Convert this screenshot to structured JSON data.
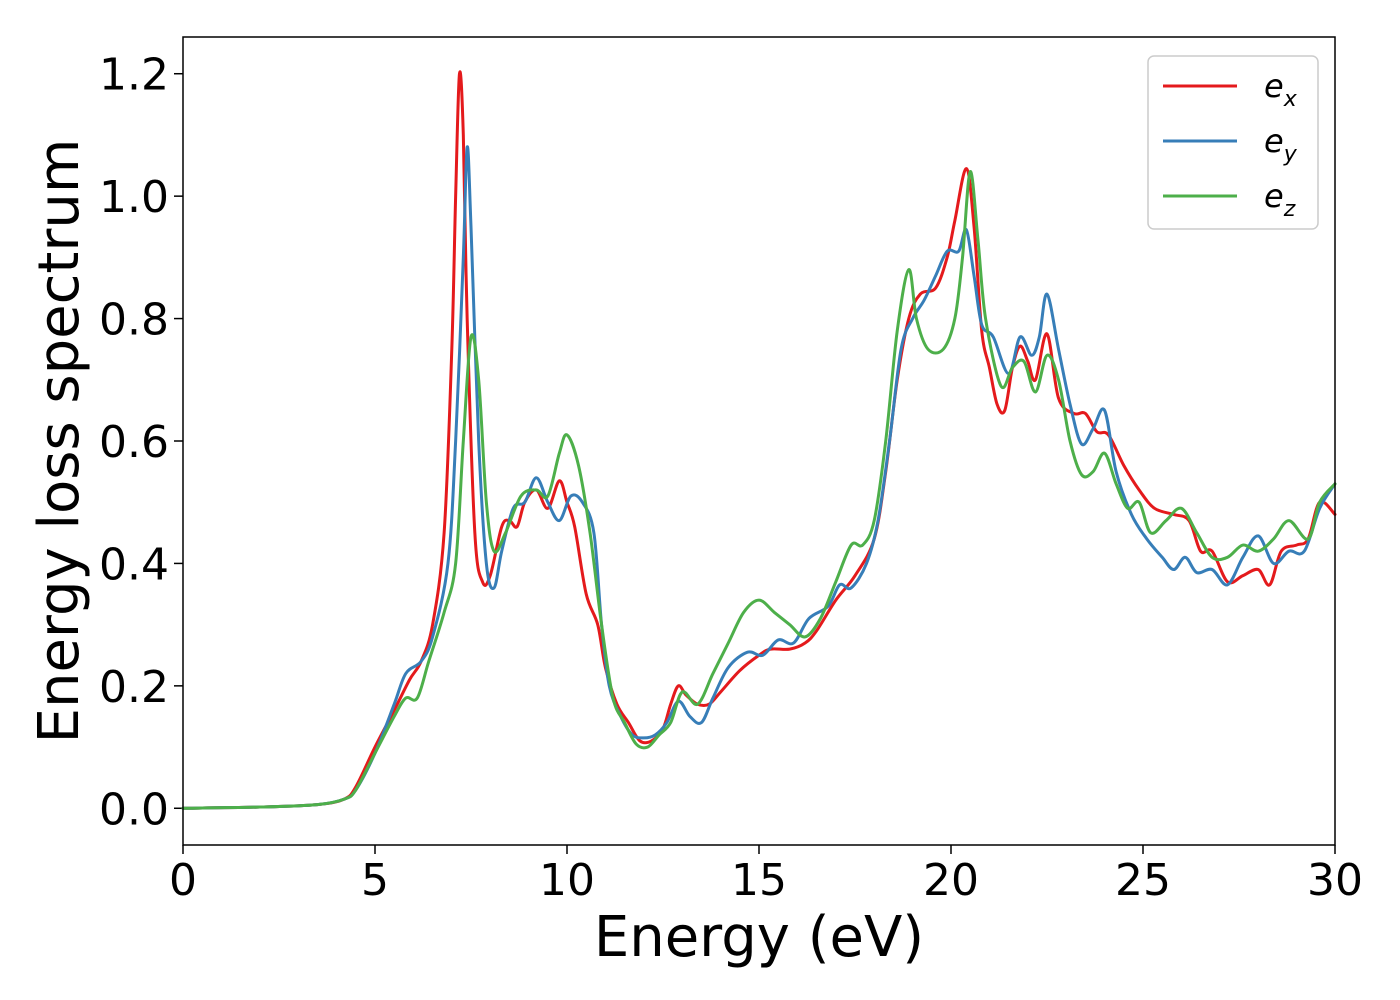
{
  "chart_data": {
    "type": "line",
    "title": "",
    "xlabel": "Energy (eV)",
    "ylabel": "Energy loss spectrum",
    "xlim": [
      0,
      30
    ],
    "ylim": [
      -0.06,
      1.26
    ],
    "xticks": [
      0,
      5,
      10,
      15,
      20,
      25,
      30
    ],
    "yticks": [
      0.0,
      0.2,
      0.4,
      0.6,
      0.8,
      1.0,
      1.2
    ],
    "ytick_labels": [
      "0.0",
      "0.2",
      "0.4",
      "0.6",
      "0.8",
      "1.0",
      "1.2"
    ],
    "grid": false,
    "legend_position": "top-right",
    "series": [
      {
        "name": "e",
        "subscript": "x",
        "color": "#e41a1c",
        "points": [
          [
            0,
            0.0
          ],
          [
            2,
            0.002
          ],
          [
            3.5,
            0.006
          ],
          [
            4.2,
            0.015
          ],
          [
            4.5,
            0.035
          ],
          [
            5.0,
            0.1
          ],
          [
            5.5,
            0.16
          ],
          [
            5.9,
            0.21
          ],
          [
            6.2,
            0.24
          ],
          [
            6.5,
            0.3
          ],
          [
            6.8,
            0.45
          ],
          [
            7.0,
            0.75
          ],
          [
            7.1,
            1.0
          ],
          [
            7.2,
            1.2
          ],
          [
            7.3,
            1.1
          ],
          [
            7.4,
            0.8
          ],
          [
            7.6,
            0.45
          ],
          [
            7.8,
            0.37
          ],
          [
            8.0,
            0.38
          ],
          [
            8.3,
            0.46
          ],
          [
            8.5,
            0.47
          ],
          [
            8.7,
            0.46
          ],
          [
            8.9,
            0.5
          ],
          [
            9.2,
            0.52
          ],
          [
            9.5,
            0.49
          ],
          [
            9.8,
            0.535
          ],
          [
            10.0,
            0.5
          ],
          [
            10.2,
            0.46
          ],
          [
            10.5,
            0.35
          ],
          [
            10.8,
            0.3
          ],
          [
            11.0,
            0.23
          ],
          [
            11.3,
            0.17
          ],
          [
            11.6,
            0.14
          ],
          [
            11.9,
            0.11
          ],
          [
            12.2,
            0.11
          ],
          [
            12.5,
            0.13
          ],
          [
            12.7,
            0.17
          ],
          [
            12.9,
            0.2
          ],
          [
            13.1,
            0.185
          ],
          [
            13.4,
            0.17
          ],
          [
            13.7,
            0.17
          ],
          [
            14.0,
            0.19
          ],
          [
            14.5,
            0.225
          ],
          [
            15.0,
            0.25
          ],
          [
            15.3,
            0.26
          ],
          [
            15.8,
            0.26
          ],
          [
            16.2,
            0.27
          ],
          [
            16.5,
            0.29
          ],
          [
            17.0,
            0.34
          ],
          [
            17.5,
            0.38
          ],
          [
            18.0,
            0.44
          ],
          [
            18.3,
            0.55
          ],
          [
            18.6,
            0.7
          ],
          [
            18.9,
            0.8
          ],
          [
            19.2,
            0.84
          ],
          [
            19.6,
            0.85
          ],
          [
            19.9,
            0.9
          ],
          [
            20.1,
            0.96
          ],
          [
            20.4,
            1.045
          ],
          [
            20.6,
            0.95
          ],
          [
            20.8,
            0.78
          ],
          [
            21.0,
            0.72
          ],
          [
            21.2,
            0.66
          ],
          [
            21.4,
            0.65
          ],
          [
            21.6,
            0.72
          ],
          [
            21.8,
            0.755
          ],
          [
            22.0,
            0.73
          ],
          [
            22.2,
            0.7
          ],
          [
            22.5,
            0.775
          ],
          [
            22.8,
            0.67
          ],
          [
            23.2,
            0.645
          ],
          [
            23.5,
            0.645
          ],
          [
            23.8,
            0.615
          ],
          [
            24.1,
            0.61
          ],
          [
            24.5,
            0.56
          ],
          [
            24.9,
            0.52
          ],
          [
            25.3,
            0.49
          ],
          [
            25.8,
            0.48
          ],
          [
            26.2,
            0.47
          ],
          [
            26.5,
            0.42
          ],
          [
            26.8,
            0.42
          ],
          [
            27.2,
            0.37
          ],
          [
            27.6,
            0.38
          ],
          [
            28.0,
            0.39
          ],
          [
            28.3,
            0.365
          ],
          [
            28.6,
            0.42
          ],
          [
            29.0,
            0.43
          ],
          [
            29.3,
            0.44
          ],
          [
            29.6,
            0.5
          ],
          [
            30,
            0.48
          ]
        ]
      },
      {
        "name": "e",
        "subscript": "y",
        "color": "#377eb8",
        "points": [
          [
            0,
            0.0
          ],
          [
            2,
            0.002
          ],
          [
            3.5,
            0.006
          ],
          [
            4.2,
            0.015
          ],
          [
            4.5,
            0.03
          ],
          [
            5.0,
            0.09
          ],
          [
            5.5,
            0.17
          ],
          [
            5.8,
            0.22
          ],
          [
            6.2,
            0.24
          ],
          [
            6.5,
            0.28
          ],
          [
            6.9,
            0.4
          ],
          [
            7.1,
            0.6
          ],
          [
            7.3,
            0.9
          ],
          [
            7.4,
            1.08
          ],
          [
            7.5,
            0.95
          ],
          [
            7.7,
            0.6
          ],
          [
            7.9,
            0.4
          ],
          [
            8.1,
            0.36
          ],
          [
            8.3,
            0.42
          ],
          [
            8.6,
            0.49
          ],
          [
            8.9,
            0.5
          ],
          [
            9.2,
            0.54
          ],
          [
            9.5,
            0.5
          ],
          [
            9.8,
            0.47
          ],
          [
            10.1,
            0.51
          ],
          [
            10.4,
            0.5
          ],
          [
            10.7,
            0.45
          ],
          [
            10.9,
            0.3
          ],
          [
            11.1,
            0.2
          ],
          [
            11.4,
            0.15
          ],
          [
            11.7,
            0.12
          ],
          [
            12.0,
            0.115
          ],
          [
            12.3,
            0.12
          ],
          [
            12.6,
            0.14
          ],
          [
            12.9,
            0.175
          ],
          [
            13.2,
            0.15
          ],
          [
            13.5,
            0.14
          ],
          [
            13.8,
            0.18
          ],
          [
            14.2,
            0.23
          ],
          [
            14.7,
            0.255
          ],
          [
            15.1,
            0.25
          ],
          [
            15.5,
            0.275
          ],
          [
            15.9,
            0.27
          ],
          [
            16.3,
            0.31
          ],
          [
            16.8,
            0.33
          ],
          [
            17.1,
            0.365
          ],
          [
            17.4,
            0.36
          ],
          [
            17.8,
            0.4
          ],
          [
            18.1,
            0.47
          ],
          [
            18.4,
            0.6
          ],
          [
            18.7,
            0.75
          ],
          [
            19.0,
            0.8
          ],
          [
            19.3,
            0.83
          ],
          [
            19.6,
            0.87
          ],
          [
            19.9,
            0.91
          ],
          [
            20.2,
            0.91
          ],
          [
            20.4,
            0.945
          ],
          [
            20.6,
            0.87
          ],
          [
            20.8,
            0.79
          ],
          [
            21.1,
            0.77
          ],
          [
            21.5,
            0.71
          ],
          [
            21.8,
            0.77
          ],
          [
            22.1,
            0.74
          ],
          [
            22.3,
            0.77
          ],
          [
            22.5,
            0.84
          ],
          [
            22.8,
            0.75
          ],
          [
            23.1,
            0.66
          ],
          [
            23.4,
            0.595
          ],
          [
            23.7,
            0.62
          ],
          [
            24.0,
            0.65
          ],
          [
            24.3,
            0.55
          ],
          [
            24.7,
            0.48
          ],
          [
            25.1,
            0.44
          ],
          [
            25.5,
            0.41
          ],
          [
            25.8,
            0.39
          ],
          [
            26.1,
            0.41
          ],
          [
            26.4,
            0.385
          ],
          [
            26.8,
            0.39
          ],
          [
            27.2,
            0.365
          ],
          [
            27.6,
            0.41
          ],
          [
            28.0,
            0.445
          ],
          [
            28.4,
            0.4
          ],
          [
            28.8,
            0.42
          ],
          [
            29.2,
            0.42
          ],
          [
            29.6,
            0.49
          ],
          [
            30,
            0.53
          ]
        ]
      },
      {
        "name": "e",
        "subscript": "z",
        "color": "#4daf4a",
        "points": [
          [
            0,
            0.0
          ],
          [
            2,
            0.002
          ],
          [
            3.5,
            0.006
          ],
          [
            4.2,
            0.015
          ],
          [
            4.5,
            0.03
          ],
          [
            5.0,
            0.09
          ],
          [
            5.5,
            0.15
          ],
          [
            5.8,
            0.18
          ],
          [
            6.1,
            0.18
          ],
          [
            6.4,
            0.24
          ],
          [
            6.8,
            0.32
          ],
          [
            7.1,
            0.4
          ],
          [
            7.3,
            0.6
          ],
          [
            7.5,
            0.77
          ],
          [
            7.7,
            0.7
          ],
          [
            7.9,
            0.5
          ],
          [
            8.1,
            0.42
          ],
          [
            8.4,
            0.45
          ],
          [
            8.8,
            0.51
          ],
          [
            9.2,
            0.52
          ],
          [
            9.5,
            0.51
          ],
          [
            9.8,
            0.58
          ],
          [
            10.0,
            0.61
          ],
          [
            10.3,
            0.56
          ],
          [
            10.6,
            0.45
          ],
          [
            10.9,
            0.3
          ],
          [
            11.2,
            0.18
          ],
          [
            11.5,
            0.14
          ],
          [
            11.8,
            0.105
          ],
          [
            12.1,
            0.1
          ],
          [
            12.4,
            0.12
          ],
          [
            12.7,
            0.14
          ],
          [
            13.0,
            0.19
          ],
          [
            13.4,
            0.17
          ],
          [
            13.8,
            0.22
          ],
          [
            14.2,
            0.27
          ],
          [
            14.6,
            0.32
          ],
          [
            15.0,
            0.34
          ],
          [
            15.4,
            0.32
          ],
          [
            15.8,
            0.3
          ],
          [
            16.2,
            0.28
          ],
          [
            16.6,
            0.31
          ],
          [
            17.0,
            0.37
          ],
          [
            17.4,
            0.43
          ],
          [
            17.7,
            0.43
          ],
          [
            18.0,
            0.47
          ],
          [
            18.3,
            0.6
          ],
          [
            18.6,
            0.78
          ],
          [
            18.9,
            0.88
          ],
          [
            19.1,
            0.8
          ],
          [
            19.4,
            0.75
          ],
          [
            19.8,
            0.75
          ],
          [
            20.1,
            0.8
          ],
          [
            20.3,
            0.9
          ],
          [
            20.5,
            1.04
          ],
          [
            20.7,
            0.93
          ],
          [
            20.9,
            0.8
          ],
          [
            21.3,
            0.69
          ],
          [
            21.6,
            0.72
          ],
          [
            21.9,
            0.73
          ],
          [
            22.2,
            0.68
          ],
          [
            22.5,
            0.74
          ],
          [
            22.8,
            0.7
          ],
          [
            23.1,
            0.6
          ],
          [
            23.4,
            0.545
          ],
          [
            23.7,
            0.55
          ],
          [
            24.0,
            0.58
          ],
          [
            24.3,
            0.53
          ],
          [
            24.6,
            0.49
          ],
          [
            24.9,
            0.5
          ],
          [
            25.2,
            0.45
          ],
          [
            25.6,
            0.47
          ],
          [
            26.0,
            0.49
          ],
          [
            26.4,
            0.45
          ],
          [
            26.8,
            0.41
          ],
          [
            27.2,
            0.41
          ],
          [
            27.6,
            0.43
          ],
          [
            28.0,
            0.42
          ],
          [
            28.4,
            0.44
          ],
          [
            28.8,
            0.47
          ],
          [
            29.3,
            0.44
          ],
          [
            29.6,
            0.5
          ],
          [
            30,
            0.53
          ]
        ]
      }
    ]
  }
}
